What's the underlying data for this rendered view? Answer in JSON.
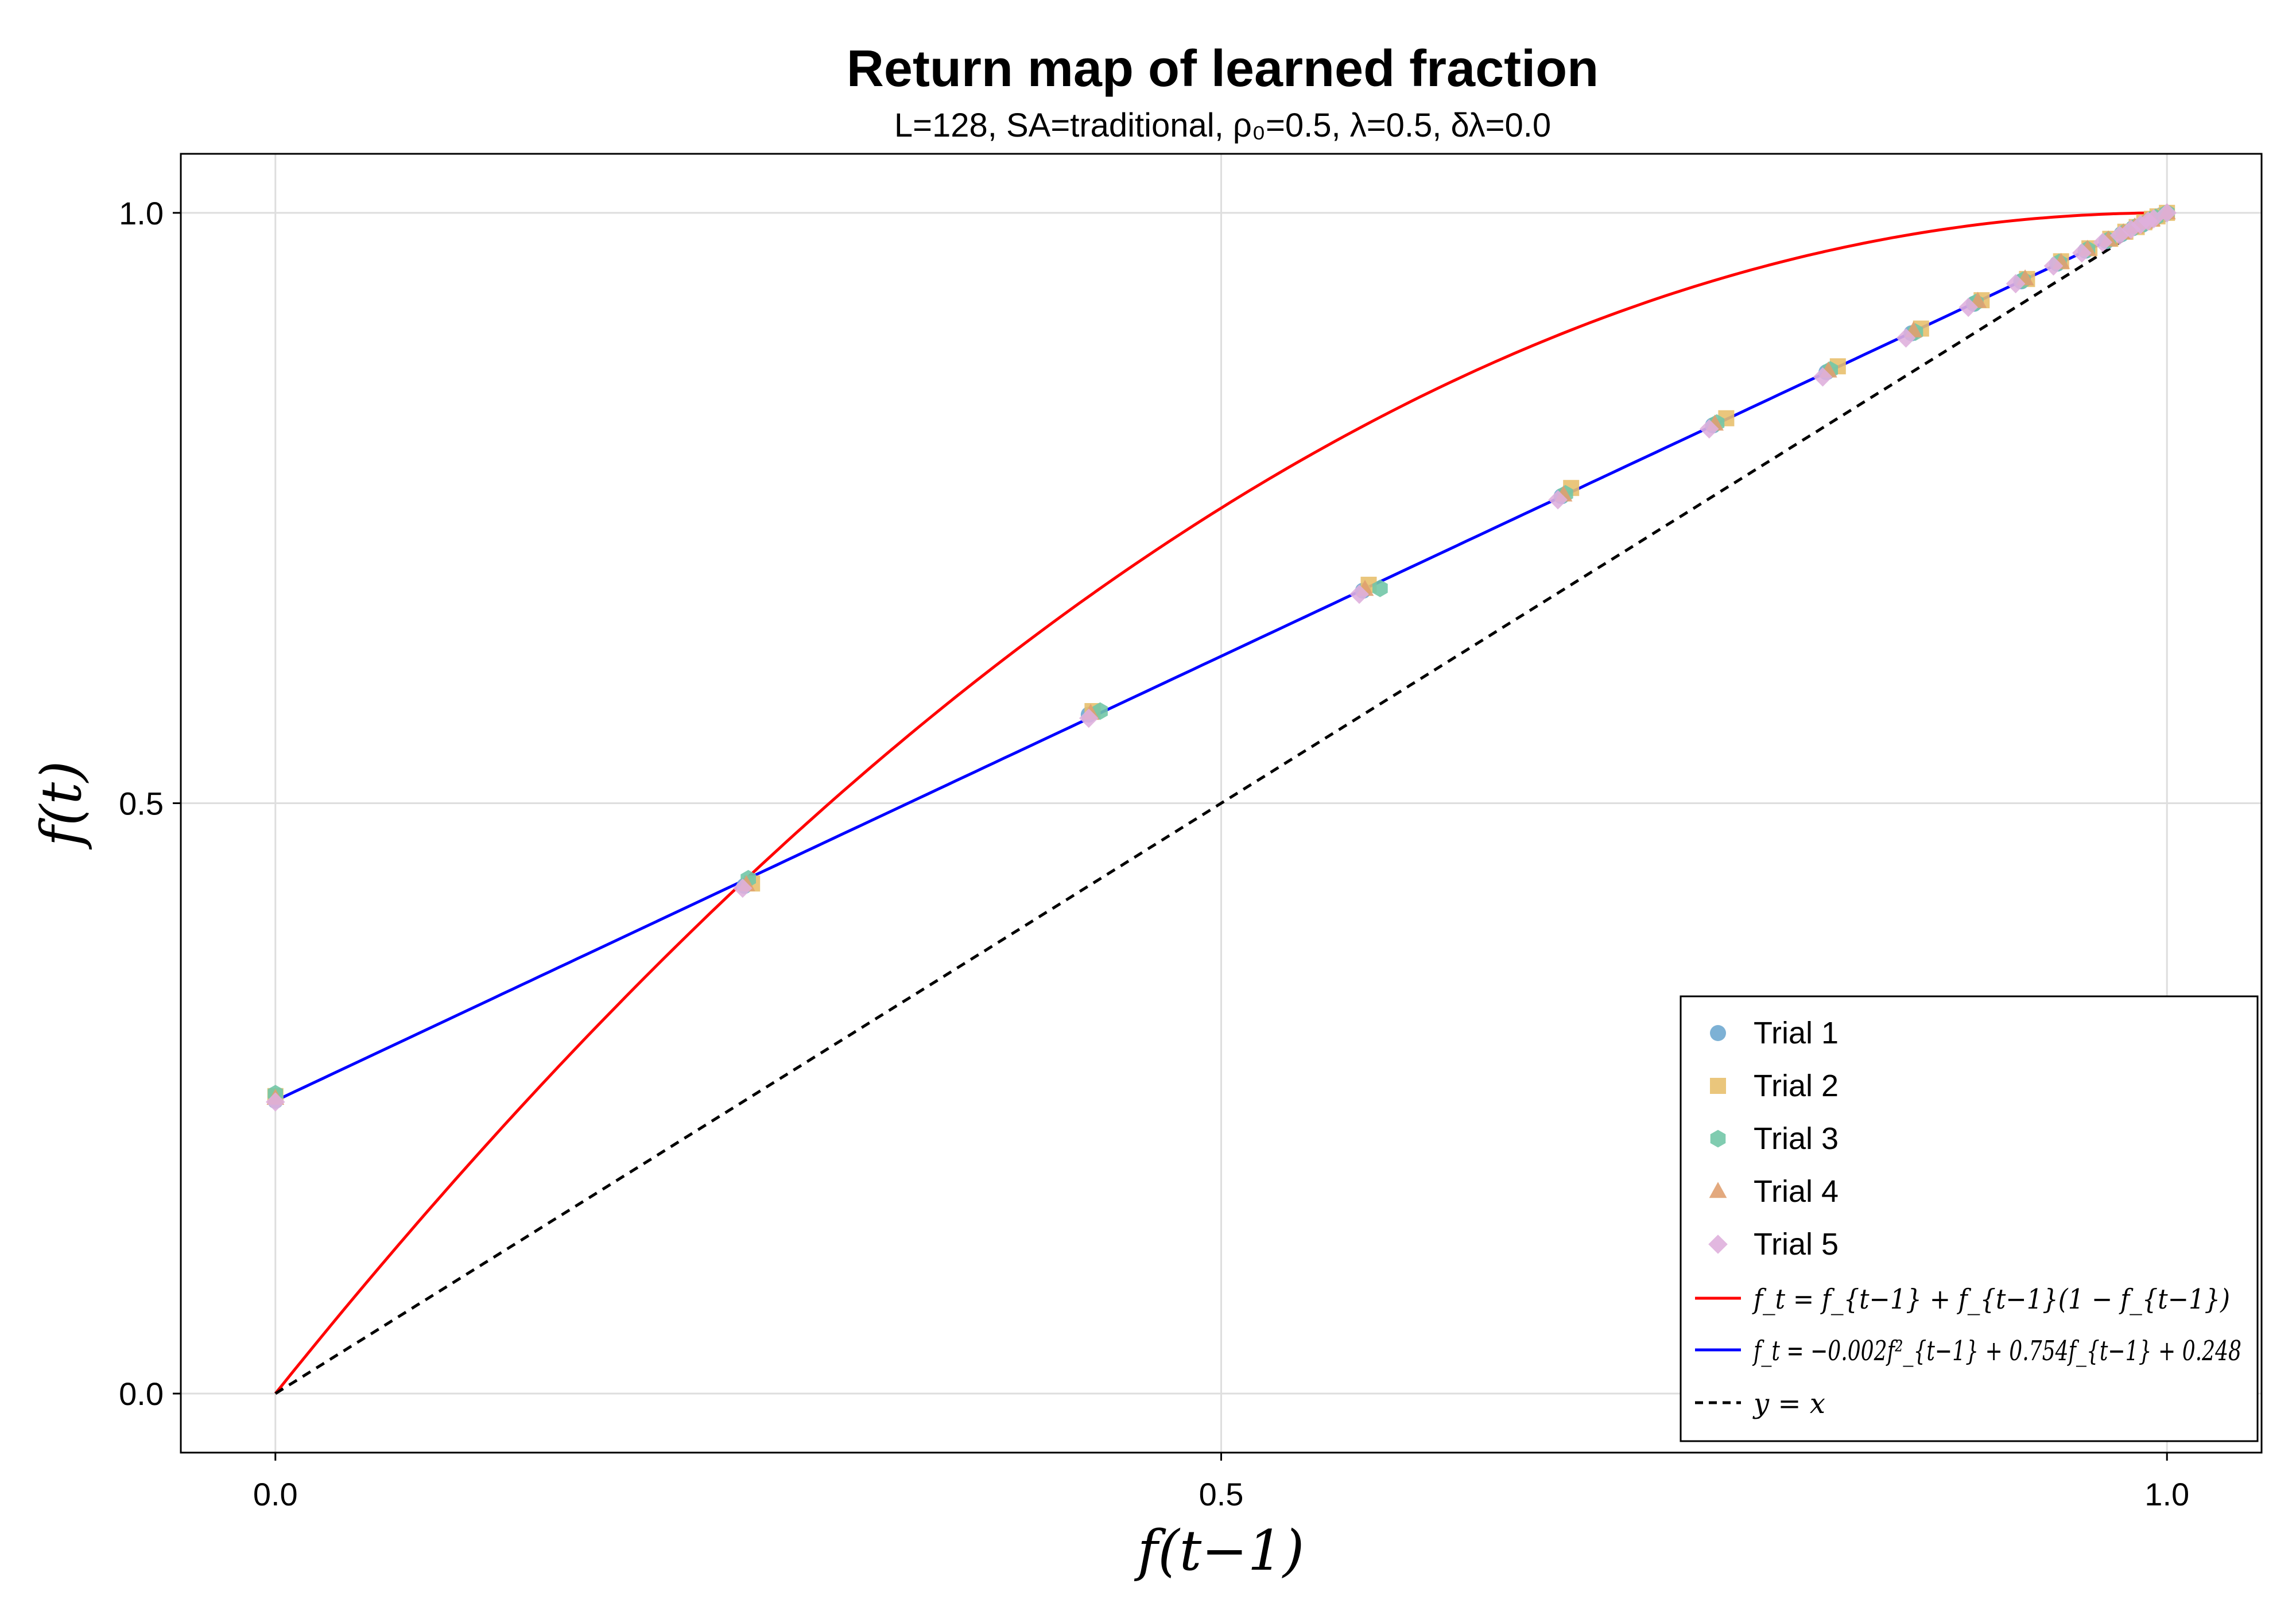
{
  "chart_data": {
    "type": "scatter",
    "title": "Return map of learned fraction",
    "subtitle": "L=128, SA=traditional, ρ₀=0.5, λ=0.5, δλ=0.0",
    "xlabel": "f(t−1)",
    "ylabel": "f(t)",
    "xlim": [
      -0.05,
      1.05
    ],
    "ylim": [
      -0.05,
      1.05
    ],
    "xticks": [
      0.0,
      0.5,
      1.0
    ],
    "yticks": [
      0.0,
      0.5,
      1.0
    ],
    "xtick_labels": [
      "0.0",
      "0.5",
      "1.0"
    ],
    "ytick_labels": [
      "0.0",
      "0.5",
      "1.0"
    ],
    "grid": true,
    "legend_position": "bottom-right",
    "series": [
      {
        "name": "Trial 1",
        "marker": "circle",
        "color": "#6fa8d0",
        "x": [
          0.0,
          0.248,
          0.43,
          0.575,
          0.68,
          0.76,
          0.82,
          0.865,
          0.898,
          0.923,
          0.942,
          0.957,
          0.968,
          0.976,
          0.982,
          0.987,
          0.99,
          0.993,
          0.995,
          0.997,
          1.0
        ],
        "y": [
          0.248,
          0.43,
          0.575,
          0.68,
          0.76,
          0.82,
          0.865,
          0.898,
          0.923,
          0.942,
          0.957,
          0.968,
          0.976,
          0.982,
          0.987,
          0.99,
          0.993,
          0.995,
          0.997,
          0.998,
          1.0
        ]
      },
      {
        "name": "Trial 2",
        "marker": "square",
        "color": "#e8c06e",
        "x": [
          0.0,
          0.252,
          0.432,
          0.578,
          0.685,
          0.767,
          0.826,
          0.87,
          0.902,
          0.926,
          0.944,
          0.959,
          0.97,
          0.978,
          0.984,
          0.988,
          0.992,
          0.995,
          1.0
        ],
        "y": [
          0.252,
          0.432,
          0.578,
          0.685,
          0.767,
          0.826,
          0.87,
          0.902,
          0.926,
          0.944,
          0.959,
          0.97,
          0.978,
          0.984,
          0.988,
          0.992,
          0.995,
          0.997,
          1.0
        ]
      },
      {
        "name": "Trial 3",
        "marker": "hexagon",
        "color": "#72c7a7",
        "x": [
          0.0,
          0.25,
          0.436,
          0.584,
          0.682,
          0.762,
          0.822,
          0.867,
          0.899,
          0.924,
          0.943,
          0.958,
          0.969,
          0.977,
          0.983,
          0.988,
          0.991,
          0.994,
          1.0
        ],
        "y": [
          0.254,
          0.436,
          0.578,
          0.682,
          0.762,
          0.822,
          0.867,
          0.899,
          0.924,
          0.943,
          0.958,
          0.969,
          0.977,
          0.983,
          0.988,
          0.991,
          0.994,
          0.996,
          1.0
        ]
      },
      {
        "name": "Trial 4",
        "marker": "triangle",
        "color": "#e0a070",
        "x": [
          0.0,
          0.249,
          0.431,
          0.576,
          0.681,
          0.761,
          0.821,
          0.866,
          0.9,
          0.925,
          0.944,
          0.958,
          0.969,
          0.977,
          0.983,
          0.988,
          0.992,
          1.0
        ],
        "y": [
          0.25,
          0.431,
          0.576,
          0.681,
          0.761,
          0.821,
          0.866,
          0.9,
          0.925,
          0.944,
          0.958,
          0.969,
          0.977,
          0.983,
          0.988,
          0.992,
          0.994,
          1.0
        ]
      },
      {
        "name": "Trial 5",
        "marker": "diamond",
        "color": "#dfb0dd",
        "x": [
          0.0,
          0.247,
          0.43,
          0.573,
          0.678,
          0.758,
          0.818,
          0.862,
          0.895,
          0.92,
          0.94,
          0.955,
          0.966,
          0.975,
          0.981,
          0.986,
          0.99,
          0.993,
          1.0
        ],
        "y": [
          0.247,
          0.428,
          0.572,
          0.677,
          0.757,
          0.817,
          0.861,
          0.894,
          0.92,
          0.94,
          0.955,
          0.966,
          0.975,
          0.981,
          0.986,
          0.99,
          0.993,
          0.995,
          1.0
        ]
      }
    ],
    "lines": [
      {
        "name": "f_t = f_{t−1} + f_{t−1}(1 − f_{t−1})",
        "color": "#ff0000",
        "style": "solid",
        "a": -1.0,
        "b": 2.0,
        "c": 0.0
      },
      {
        "name": "f_t = −0.002f²_{t−1} + 0.754f_{t−1} + 0.248",
        "color": "#0000ff",
        "style": "solid",
        "a": -0.002,
        "b": 0.754,
        "c": 0.248
      },
      {
        "name": "y = x",
        "color": "#000000",
        "style": "dashed",
        "a": 0.0,
        "b": 1.0,
        "c": 0.0
      }
    ]
  },
  "legend": {
    "trial_1": "Trial 1",
    "trial_2": "Trial 2",
    "trial_3": "Trial 3",
    "trial_4": "Trial 4",
    "trial_5": "Trial 5",
    "fit_logistic": "f_t = f_{t−1} + f_{t−1}(1 − f_{t−1})",
    "fit_quadratic": "f_t = −0.002f²_{t−1} + 0.754f_{t−1} + 0.248",
    "identity": "y = x"
  },
  "colors": {
    "trial_1": "#6fa8d0",
    "trial_2": "#e8c06e",
    "trial_3": "#72c7a7",
    "trial_4": "#e0a070",
    "trial_5": "#dfb0dd",
    "logistic": "#ff0000",
    "quadratic": "#0000ff",
    "identity": "#000000",
    "grid": "#dedede"
  }
}
